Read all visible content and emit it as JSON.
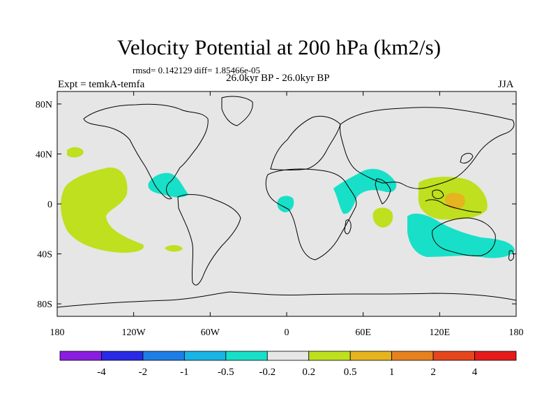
{
  "title": "Velocity Potential at 200 hPa (km2/s)",
  "stats_text": "rmsd= 0.142129 diff= 1.85466e-05",
  "experiment_label": "Expt = temkA-temfa",
  "period_label": "26.0kyr BP - 26.0kyr BP",
  "season_label": "JJA",
  "map": {
    "projection": "cylindrical-equidistant",
    "lon_range": [
      -180,
      180
    ],
    "lat_range": [
      -90,
      90
    ],
    "ocean_color": "#e6e6e6",
    "coastline_color": "#000000",
    "x_ticks": [
      {
        "value": -180,
        "label": "180"
      },
      {
        "value": -120,
        "label": "120W"
      },
      {
        "value": -60,
        "label": "60W"
      },
      {
        "value": 0,
        "label": "0"
      },
      {
        "value": 60,
        "label": "60E"
      },
      {
        "value": 120,
        "label": "120E"
      },
      {
        "value": 180,
        "label": "180"
      }
    ],
    "y_ticks": [
      {
        "value": 80,
        "label": "80N"
      },
      {
        "value": 40,
        "label": "40N"
      },
      {
        "value": 0,
        "label": "0"
      },
      {
        "value": -40,
        "label": "40S"
      },
      {
        "value": -80,
        "label": "80S"
      }
    ]
  },
  "colorbar": {
    "levels": [
      "-4",
      "-2",
      "-1",
      "-0.5",
      "-0.2",
      "0.2",
      "0.5",
      "1",
      "2",
      "4"
    ],
    "colors": [
      "#8a1ee0",
      "#2a2ae6",
      "#1e7ee6",
      "#18b4e6",
      "#18e0c8",
      "#e6e6e6",
      "#bee01e",
      "#e6b41e",
      "#e6821e",
      "#e6461e",
      "#e61a1a"
    ]
  }
}
